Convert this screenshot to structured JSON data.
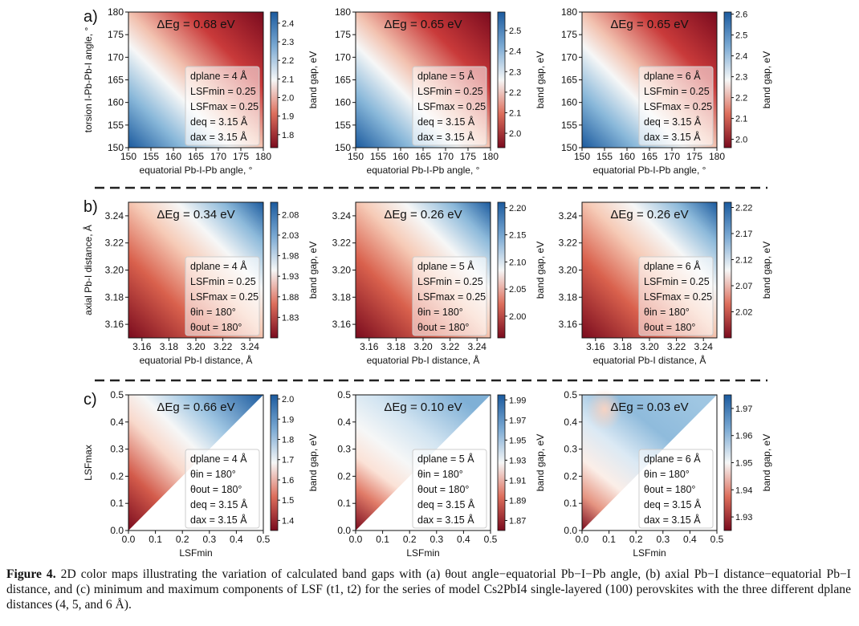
{
  "caption": {
    "label": "Figure 4.",
    "text": "2D color maps illustrating the variation of calculated band gaps with (a) θout angle−equatorial Pb−I−Pb angle, (b) axial Pb−I distance−equatorial Pb−I distance, and (c) minimum and maximum components of LSF (t1, t2) for the series of model Cs2PbI4 single-layered (100) perovskites with the three different dplane distances (4, 5, and 6 Å)."
  },
  "colors": {
    "blue": "#1b5a9e",
    "white": "#f6f7f7",
    "red": "#7a0b1e",
    "dash": "#222222"
  },
  "chart_data": [
    {
      "id": "a1",
      "row": "a",
      "row_label": "a)",
      "type": "heatmap",
      "colormap": "RdBu",
      "gradient": "diagonal-red-top-right",
      "title": "ΔEg = 0.68 eV",
      "xlabel": "equatorial Pb-I-Pb angle, °",
      "ylabel": "torsion I-Pb-Pb-I angle, °",
      "xlim": [
        150,
        180
      ],
      "ylim": [
        150,
        180
      ],
      "xticks": [
        "150",
        "155",
        "160",
        "165",
        "170",
        "175",
        "180"
      ],
      "yticks": [
        "150",
        "155",
        "160",
        "165",
        "170",
        "175",
        "180"
      ],
      "colorbar": {
        "label": "band gap, eV",
        "range": [
          1.73,
          2.46
        ],
        "ticks": [
          "1.8",
          "1.9",
          "2.0",
          "2.1",
          "2.2",
          "2.3",
          "2.4"
        ]
      },
      "legend": [
        "dplane = 4 Å",
        "LSFmin = 0.25",
        "LSFmax = 0.25",
        "deq = 3.15 Å",
        "dax = 3.15 Å"
      ]
    },
    {
      "id": "a2",
      "row": "a",
      "row_label": "",
      "type": "heatmap",
      "colormap": "RdBu",
      "gradient": "diagonal-red-top-right",
      "title": "ΔEg = 0.65 eV",
      "xlabel": "equatorial Pb-I-Pb angle, °",
      "ylabel": "",
      "xlim": [
        150,
        180
      ],
      "ylim": [
        150,
        180
      ],
      "xticks": [
        "150",
        "155",
        "160",
        "165",
        "170",
        "175",
        "180"
      ],
      "yticks": [
        "150",
        "155",
        "160",
        "165",
        "170",
        "175",
        "180"
      ],
      "colorbar": {
        "label": "band gap, eV",
        "range": [
          1.93,
          2.59
        ],
        "ticks": [
          "2.0",
          "2.1",
          "2.2",
          "2.3",
          "2.4",
          "2.5"
        ]
      },
      "legend": [
        "dplane = 5 Å",
        "LSFmin = 0.25",
        "LSFmax = 0.25",
        "deq = 3.15 Å",
        "dax = 3.15 Å"
      ]
    },
    {
      "id": "a3",
      "row": "a",
      "row_label": "",
      "type": "heatmap",
      "colormap": "RdBu",
      "gradient": "diagonal-red-top-right",
      "title": "ΔEg = 0.65 eV",
      "xlabel": "equatorial Pb-I-Pb angle, °",
      "ylabel": "",
      "xlim": [
        150,
        180
      ],
      "ylim": [
        150,
        180
      ],
      "xticks": [
        "150",
        "155",
        "160",
        "165",
        "170",
        "175",
        "180"
      ],
      "yticks": [
        "150",
        "155",
        "160",
        "165",
        "170",
        "175",
        "180"
      ],
      "colorbar": {
        "label": "band gap, eV",
        "range": [
          1.96,
          2.61
        ],
        "ticks": [
          "2.0",
          "2.1",
          "2.2",
          "2.3",
          "2.4",
          "2.5",
          "2.6"
        ]
      },
      "legend": [
        "dplane = 6 Å",
        "LSFmin = 0.25",
        "LSFmax = 0.25",
        "deq = 3.15 Å",
        "dax = 3.15 Å"
      ]
    },
    {
      "id": "b1",
      "row": "b",
      "row_label": "b)",
      "type": "heatmap",
      "colormap": "RdBu",
      "gradient": "diagonal-blue-top-right",
      "title": "ΔEg = 0.34 eV",
      "xlabel": "equatorial Pb-I distance, Å",
      "ylabel": "axial Pb-I distance, Å",
      "xlim": [
        3.15,
        3.25
      ],
      "ylim": [
        3.15,
        3.25
      ],
      "xticks": [
        "3.16",
        "3.18",
        "3.20",
        "3.22",
        "3.24"
      ],
      "yticks": [
        "3.16",
        "3.18",
        "3.20",
        "3.22",
        "3.24"
      ],
      "colorbar": {
        "label": "band gap, eV",
        "range": [
          1.78,
          2.11
        ],
        "ticks": [
          "1.83",
          "1.88",
          "1.93",
          "1.98",
          "2.03",
          "2.08"
        ]
      },
      "legend": [
        "dplane = 4 Å",
        "LSFmin = 0.25",
        "LSFmax = 0.25",
        "θin = 180°",
        "θout = 180°"
      ]
    },
    {
      "id": "b2",
      "row": "b",
      "row_label": "",
      "type": "heatmap",
      "colormap": "RdBu",
      "gradient": "diagonal-blue-top-right",
      "title": "ΔEg = 0.26 eV",
      "xlabel": "equatorial Pb-I distance, Å",
      "ylabel": "",
      "xlim": [
        3.15,
        3.25
      ],
      "ylim": [
        3.15,
        3.25
      ],
      "xticks": [
        "3.16",
        "3.18",
        "3.20",
        "3.22",
        "3.24"
      ],
      "yticks": [
        "3.16",
        "3.18",
        "3.20",
        "3.22",
        "3.24"
      ],
      "colorbar": {
        "label": "band gap, eV",
        "range": [
          1.96,
          2.21
        ],
        "ticks": [
          "2.00",
          "2.05",
          "2.10",
          "2.15",
          "2.20"
        ]
      },
      "legend": [
        "dplane = 5 Å",
        "LSFmin = 0.25",
        "LSFmax = 0.25",
        "θin = 180°",
        "θout = 180°"
      ]
    },
    {
      "id": "b3",
      "row": "b",
      "row_label": "",
      "type": "heatmap",
      "colormap": "RdBu",
      "gradient": "diagonal-blue-top-right",
      "title": "ΔEg = 0.26 eV",
      "xlabel": "equatorial Pb-I distance, Å",
      "ylabel": "",
      "xlim": [
        3.15,
        3.25
      ],
      "ylim": [
        3.15,
        3.25
      ],
      "xticks": [
        "3.16",
        "3.18",
        "3.20",
        "3.22",
        "3.24"
      ],
      "yticks": [
        "3.16",
        "3.18",
        "3.20",
        "3.22",
        "3.24"
      ],
      "colorbar": {
        "label": "band gap, eV",
        "range": [
          1.97,
          2.23
        ],
        "ticks": [
          "2.02",
          "2.07",
          "2.12",
          "2.17",
          "2.22"
        ]
      },
      "legend": [
        "dplane = 6 Å",
        "LSFmin = 0.25",
        "LSFmax = 0.25",
        "θin = 180°",
        "θout = 180°"
      ]
    },
    {
      "id": "c1",
      "row": "c",
      "row_label": "c)",
      "type": "heatmap",
      "colormap": "RdBu",
      "gradient": "triangle-c1",
      "title": "ΔEg = 0.66 eV",
      "xlabel": "LSFmin",
      "ylabel": "LSFmax",
      "xlim": [
        0.0,
        0.5
      ],
      "ylim": [
        0.0,
        0.5
      ],
      "xticks": [
        "0.0",
        "0.1",
        "0.2",
        "0.3",
        "0.4",
        "0.5"
      ],
      "yticks": [
        "0.0",
        "0.1",
        "0.2",
        "0.3",
        "0.4",
        "0.5"
      ],
      "colorbar": {
        "label": "band gap, eV",
        "range": [
          1.35,
          2.02
        ],
        "ticks": [
          "1.4",
          "1.5",
          "1.6",
          "1.7",
          "1.8",
          "1.9",
          "2.0"
        ]
      },
      "legend": [
        "dplane = 4 Å",
        "θin = 180°",
        "θout = 180°",
        "deq = 3.15 Å",
        "dax = 3.15 Å"
      ]
    },
    {
      "id": "c2",
      "row": "c",
      "row_label": "",
      "type": "heatmap",
      "colormap": "RdBu",
      "gradient": "triangle-c2",
      "title": "ΔEg = 0.10 eV",
      "xlabel": "LSFmin",
      "ylabel": "",
      "xlim": [
        0.0,
        0.5
      ],
      "ylim": [
        0.0,
        0.5
      ],
      "xticks": [
        "0.0",
        "0.1",
        "0.2",
        "0.3",
        "0.4",
        "0.5"
      ],
      "yticks": [
        "0.0",
        "0.1",
        "0.2",
        "0.3",
        "0.4",
        "0.5"
      ],
      "colorbar": {
        "label": "band gap, eV",
        "range": [
          1.86,
          1.995
        ],
        "ticks": [
          "1.87",
          "1.89",
          "1.91",
          "1.93",
          "1.95",
          "1.97",
          "1.99"
        ]
      },
      "legend": [
        "dplane = 5 Å",
        "θin = 180°",
        "θout = 180°",
        "deq = 3.15 Å",
        "dax = 3.15 Å"
      ]
    },
    {
      "id": "c3",
      "row": "c",
      "row_label": "",
      "type": "heatmap",
      "colormap": "RdBu",
      "gradient": "triangle-c3",
      "title": "ΔEg = 0.03 eV",
      "xlabel": "LSFmin",
      "ylabel": "",
      "xlim": [
        0.0,
        0.5
      ],
      "ylim": [
        0.0,
        0.5
      ],
      "xticks": [
        "0.0",
        "0.1",
        "0.2",
        "0.3",
        "0.4",
        "0.5"
      ],
      "yticks": [
        "0.0",
        "0.1",
        "0.2",
        "0.3",
        "0.4",
        "0.5"
      ],
      "colorbar": {
        "label": "band gap, eV",
        "range": [
          1.925,
          1.975
        ],
        "ticks": [
          "1.93",
          "1.94",
          "1.95",
          "1.96",
          "1.97"
        ]
      },
      "legend": [
        "dplane = 6 Å",
        "θin = 180°",
        "θout = 180°",
        "deq = 3.15 Å",
        "dax = 3.15 Å"
      ]
    }
  ]
}
